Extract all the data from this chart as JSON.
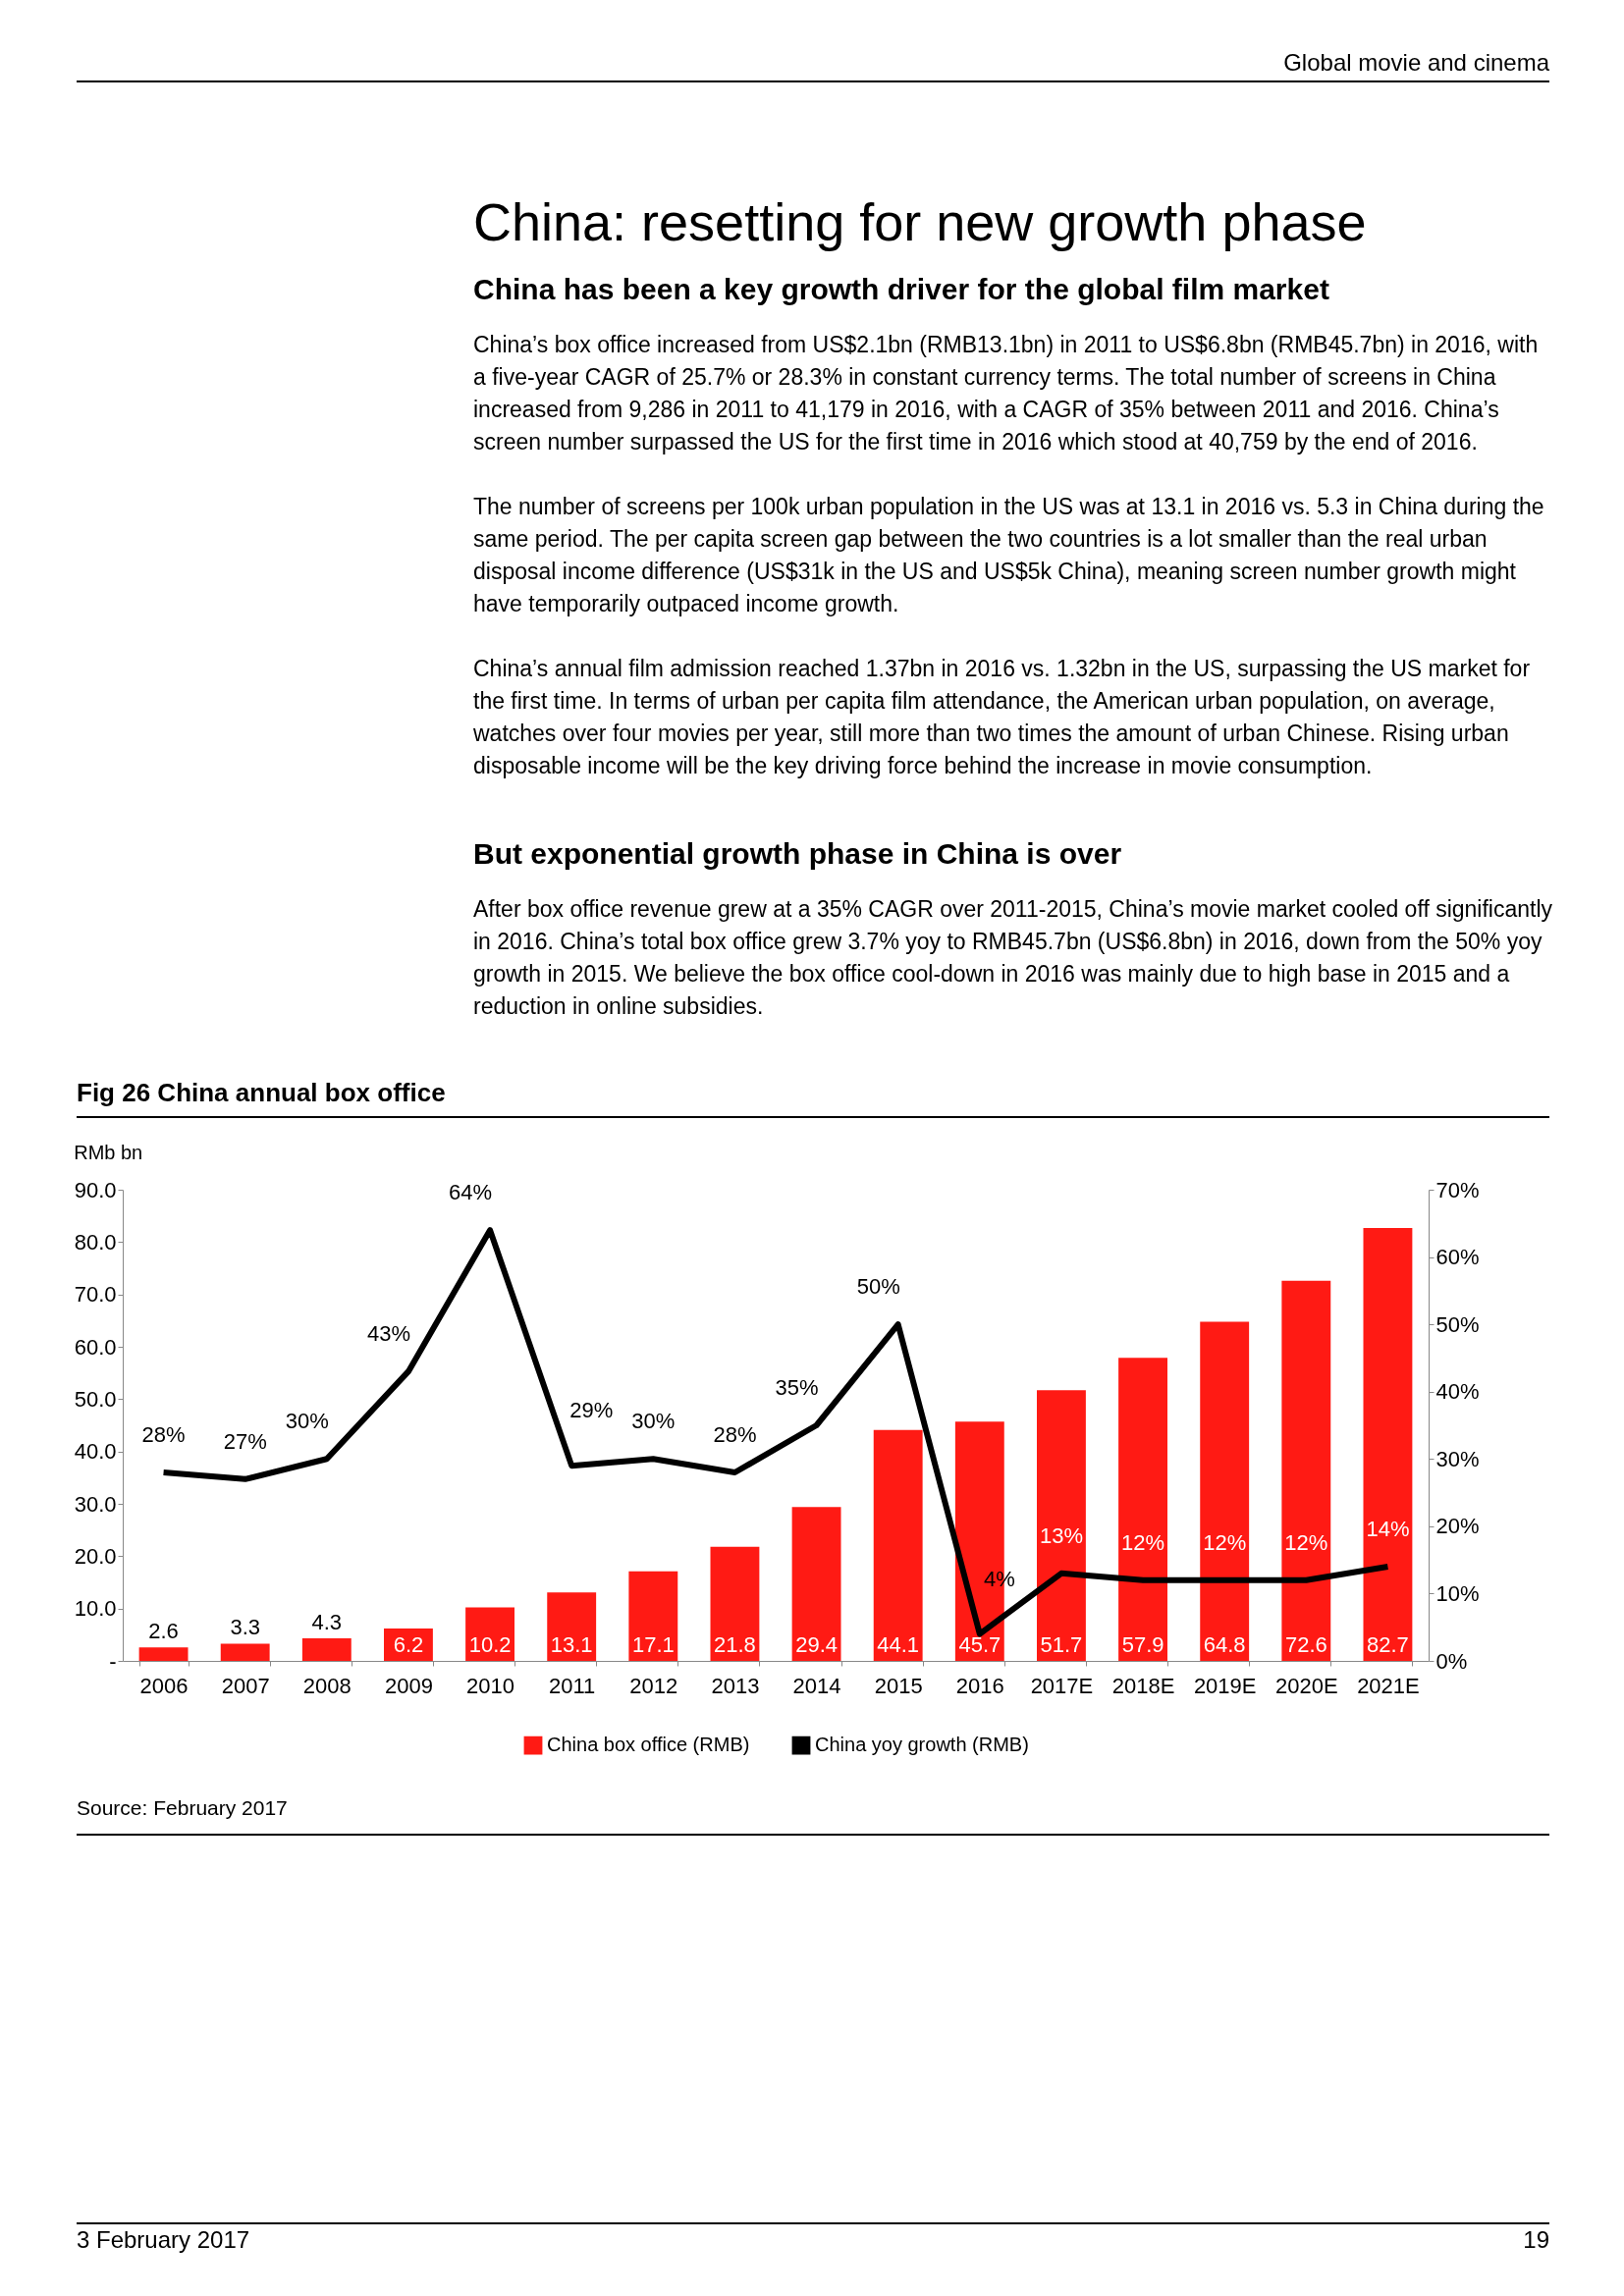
{
  "chart_data": {
    "type": "bar",
    "title": "Fig 26    China annual box office",
    "ylabel": "RMb bn",
    "categories": [
      "2006",
      "2007",
      "2008",
      "2009",
      "2010",
      "2011",
      "2012",
      "2013",
      "2014",
      "2015",
      "2016",
      "2017E",
      "2018E",
      "2019E",
      "2020E",
      "2021E"
    ],
    "series": [
      {
        "name": "China box office (RMB)",
        "color": "#ff1a14",
        "values": [
          2.6,
          3.3,
          4.3,
          6.2,
          10.2,
          13.1,
          17.1,
          21.8,
          29.4,
          44.1,
          45.7,
          51.7,
          57.9,
          64.8,
          72.6,
          82.7
        ]
      },
      {
        "name": "China yoy growth (RMB)",
        "type": "line",
        "axis": "y2",
        "color": "#000000",
        "values": [
          28,
          27,
          30,
          43,
          64,
          29,
          30,
          28,
          35,
          50,
          4,
          13,
          12,
          12,
          12,
          14
        ],
        "value_labels": [
          "28%",
          "27%",
          "30%",
          "43%",
          "64%",
          "29%",
          "30%",
          "28%",
          "35%",
          "50%",
          "4%",
          "13%",
          "12%",
          "12%",
          "12%",
          "14%"
        ]
      }
    ],
    "data_labels": true,
    "ylim": [
      0,
      90
    ],
    "yticks": [
      {
        "value": 0,
        "label": "-"
      },
      {
        "value": 10,
        "label": "10.0"
      },
      {
        "value": 20,
        "label": "20.0"
      },
      {
        "value": 30,
        "label": "30.0"
      },
      {
        "value": 40,
        "label": "40.0"
      },
      {
        "value": 50,
        "label": "50.0"
      },
      {
        "value": 60,
        "label": "60.0"
      },
      {
        "value": 70,
        "label": "70.0"
      },
      {
        "value": 80,
        "label": "80.0"
      },
      {
        "value": 90,
        "label": "90.0"
      }
    ],
    "y2lim": [
      0,
      70
    ],
    "y2ticks": [
      {
        "value": 0,
        "label": "0%"
      },
      {
        "value": 10,
        "label": "10%"
      },
      {
        "value": 20,
        "label": "20%"
      },
      {
        "value": 30,
        "label": "30%"
      },
      {
        "value": 40,
        "label": "40%"
      },
      {
        "value": 50,
        "label": "50%"
      },
      {
        "value": 60,
        "label": "60%"
      },
      {
        "value": 70,
        "label": "70%"
      }
    ],
    "legend": "bottom",
    "grid": false,
    "marker": "none",
    "line_style": "solid",
    "annotations": [
      "Global movie and cinema",
      "China: resetting for new growth phase",
      "China has been a key growth driver for the global film market",
      "China’s box office increased from US$2.1bn (RMB13.1bn) in 2011 to US$6.8bn (RMB45.7bn) in 2016, with a five-year CAGR of 25.7% or 28.3% in constant currency terms. The total number of screens in China increased from 9,286 in 2011 to 41,179 in 2016, with a CAGR of 35% between 2011 and 2016. China’s screen number surpassed the US for the first time in 2016 which stood at 40,759 by the end of 2016.",
      "The number of screens per 100k urban population in the US was at 13.1 in 2016 vs. 5.3 in China during the same period. The per capita screen gap between the two countries is a lot smaller than the real urban disposal income difference (US$31k in the US and US$5k China), meaning screen number growth might have temporarily outpaced income growth.",
      "China’s annual film admission reached 1.37bn in 2016 vs. 1.32bn in the US, surpassing the US market for the first time. In terms of urban per capita film attendance, the American urban population, on average, watches over four movies per year, still more than two times the amount of urban Chinese. Rising urban disposable income will be the key driving force behind the increase in movie consumption.",
      "But exponential growth phase in China is over",
      "After box office revenue grew at a 35% CAGR over 2011-2015, China’s movie market cooled off significantly in 2016. China’s total box office grew 3.7% yoy to RMB45.7bn (US$6.8bn) in 2016, down from the 50% yoy growth in 2015. We believe the box office cool-down in 2016 was mainly due to high base in 2015 and a reduction in online subsidies.",
      "Source: February 2017",
      "3 February 2017",
      "19"
    ]
  }
}
